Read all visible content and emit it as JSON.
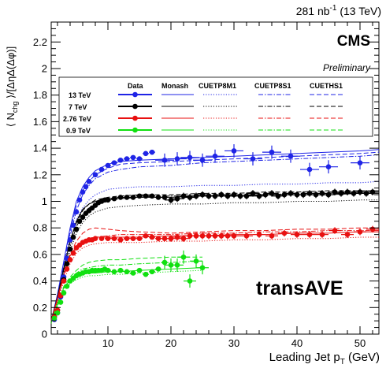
{
  "chart_data": {
    "type": "scatter",
    "header_right": "281 nb",
    "header_sup": "-1",
    "header_energy": " (13 TeV)",
    "experiment": "CMS",
    "status": "Preliminary",
    "region": "transAVE",
    "xlabel": "Leading Jet p",
    "xlabel_sub": "T",
    "xlabel_unit": " (GeV)",
    "ylabel": "⟨ N_chg ⟩/[ΔηΔ(Δφ)]",
    "xlim": [
      1,
      53
    ],
    "ylim": [
      0,
      2.35
    ],
    "x_ticks": [
      10,
      20,
      30,
      40,
      50
    ],
    "y_ticks": [
      0,
      0.2,
      0.4,
      0.6,
      0.8,
      1,
      1.2,
      1.4,
      1.6,
      1.8,
      2,
      2.2
    ],
    "legend": {
      "headers": [
        "Data",
        "Monash",
        "CUETP8M1",
        "CUETP8S1",
        "CUETHS1"
      ],
      "rows": [
        "13 TeV",
        "7 TeV",
        "2.76 TeV",
        "0.9 TeV"
      ]
    },
    "colors": {
      "13 TeV": "#1f24e6",
      "7 TeV": "#000000",
      "2.76 TeV": "#e81010",
      "0.9 TeV": "#10e010"
    },
    "data_series": [
      {
        "name": "13 TeV",
        "x": [
          1.5,
          2.0,
          2.5,
          3.0,
          3.5,
          4.0,
          4.5,
          5.0,
          5.5,
          6.0,
          6.5,
          7.0,
          8.0,
          9.0,
          10.0,
          11.0,
          12.0,
          13.0,
          14.0,
          15.0,
          16.0,
          17.0,
          19.0,
          21.0,
          23.0,
          25.0,
          27.0,
          30.0,
          33.0,
          36.0,
          39.0,
          42.0,
          45.0,
          50.0
        ],
        "y": [
          0.11,
          0.16,
          0.28,
          0.43,
          0.57,
          0.71,
          0.82,
          0.92,
          1.01,
          1.07,
          1.11,
          1.15,
          1.2,
          1.24,
          1.27,
          1.29,
          1.31,
          1.32,
          1.33,
          1.32,
          1.36,
          1.37,
          1.31,
          1.32,
          1.33,
          1.31,
          1.34,
          1.38,
          1.32,
          1.37,
          1.34,
          1.24,
          1.26,
          1.29
        ]
      },
      {
        "name": "7 TeV",
        "x": [
          1.5,
          2.0,
          2.5,
          3.0,
          3.5,
          4.0,
          4.5,
          5.0,
          5.5,
          6.0,
          6.5,
          7.0,
          7.5,
          8.0,
          8.5,
          9.0,
          9.5,
          10.0,
          11.0,
          12.0,
          13.0,
          14.0,
          15.0,
          16.0,
          17.0,
          18.0,
          19.0,
          20.0,
          21.0,
          22.0,
          23.0,
          24.0,
          25.0,
          26.0,
          27.0,
          28.0,
          29.0,
          30.0,
          31.0,
          32.0,
          33.0,
          34.0,
          35.0,
          36.0,
          37.0,
          38.0,
          39.0,
          40.0,
          41.0,
          42.0,
          43.0,
          44.0,
          45.0,
          46.0,
          47.0,
          48.0,
          49.0,
          50.0,
          51.0,
          52.0
        ],
        "y": [
          0.13,
          0.18,
          0.29,
          0.41,
          0.53,
          0.64,
          0.73,
          0.79,
          0.85,
          0.88,
          0.91,
          0.93,
          0.95,
          0.97,
          0.99,
          1.0,
          1.01,
          1.01,
          1.02,
          1.03,
          1.03,
          1.03,
          1.04,
          1.04,
          1.04,
          1.03,
          1.03,
          1.01,
          1.02,
          1.04,
          1.03,
          1.04,
          1.05,
          1.04,
          1.04,
          1.05,
          1.04,
          1.05,
          1.04,
          1.04,
          1.06,
          1.04,
          1.05,
          1.06,
          1.04,
          1.05,
          1.06,
          1.05,
          1.05,
          1.06,
          1.05,
          1.06,
          1.05,
          1.07,
          1.06,
          1.07,
          1.06,
          1.07,
          1.06,
          1.07
        ]
      },
      {
        "name": "2.76 TeV",
        "x": [
          1.5,
          2.0,
          2.5,
          3.0,
          3.5,
          4.0,
          4.5,
          5.0,
          5.5,
          6.0,
          6.5,
          7.0,
          7.5,
          8.0,
          9.0,
          10.0,
          11.0,
          12.0,
          13.0,
          14.0,
          15.0,
          16.0,
          17.0,
          18.0,
          19.0,
          20.0,
          21.0,
          22.0,
          23.0,
          24.0,
          25.0,
          26.0,
          27.0,
          28.0,
          29.0,
          30.0,
          32.0,
          34.0,
          36.0,
          38.0,
          40.0,
          42.0,
          44.0,
          46.0,
          48.0,
          50.0,
          52.0
        ],
        "y": [
          0.13,
          0.18,
          0.29,
          0.4,
          0.49,
          0.56,
          0.61,
          0.65,
          0.67,
          0.69,
          0.7,
          0.71,
          0.71,
          0.72,
          0.72,
          0.72,
          0.72,
          0.71,
          0.72,
          0.72,
          0.72,
          0.74,
          0.73,
          0.72,
          0.72,
          0.72,
          0.73,
          0.72,
          0.74,
          0.74,
          0.74,
          0.74,
          0.74,
          0.74,
          0.74,
          0.74,
          0.74,
          0.75,
          0.74,
          0.76,
          0.75,
          0.75,
          0.75,
          0.78,
          0.75,
          0.77,
          0.79
        ]
      },
      {
        "name": "0.9 TeV",
        "x": [
          1.5,
          2.0,
          2.5,
          3.0,
          3.5,
          4.0,
          4.5,
          5.0,
          5.5,
          6.0,
          6.5,
          7.0,
          7.5,
          8.0,
          8.5,
          9.0,
          9.5,
          10.0,
          11.0,
          12.0,
          13.0,
          14.0,
          15.0,
          16.0,
          17.0,
          18.0,
          19.0,
          20.0,
          21.0,
          22.0,
          23.0,
          24.0,
          25.0
        ],
        "y": [
          0.12,
          0.16,
          0.24,
          0.31,
          0.36,
          0.4,
          0.42,
          0.44,
          0.45,
          0.46,
          0.47,
          0.47,
          0.48,
          0.48,
          0.48,
          0.48,
          0.49,
          0.48,
          0.47,
          0.48,
          0.47,
          0.46,
          0.48,
          0.45,
          0.47,
          0.49,
          0.54,
          0.52,
          0.52,
          0.58,
          0.4,
          0.55,
          0.5
        ]
      }
    ],
    "model_curves": {
      "x": [
        1,
        2,
        3,
        4,
        5,
        6,
        7,
        8,
        10,
        12,
        15,
        20,
        25,
        30,
        35,
        40,
        45,
        50,
        53
      ],
      "13 TeV": {
        "Monash": [
          0.1,
          0.3,
          0.55,
          0.8,
          1.0,
          1.11,
          1.18,
          1.23,
          1.28,
          1.3,
          1.31,
          1.32,
          1.33,
          1.34,
          1.35,
          1.36,
          1.37,
          1.38,
          1.39
        ],
        "CUETP8M1": [
          0.09,
          0.26,
          0.48,
          0.7,
          0.86,
          0.95,
          1.01,
          1.05,
          1.09,
          1.1,
          1.11,
          1.11,
          1.12,
          1.12,
          1.13,
          1.13,
          1.14,
          1.14,
          1.15
        ],
        "CUETP8S1": [
          0.09,
          0.28,
          0.5,
          0.74,
          0.93,
          1.05,
          1.12,
          1.17,
          1.22,
          1.24,
          1.26,
          1.27,
          1.29,
          1.3,
          1.31,
          1.32,
          1.33,
          1.34,
          1.35
        ],
        "CUETHS1": [
          0.1,
          0.29,
          0.53,
          0.77,
          0.97,
          1.08,
          1.15,
          1.2,
          1.25,
          1.28,
          1.29,
          1.3,
          1.31,
          1.32,
          1.33,
          1.34,
          1.35,
          1.36,
          1.37
        ]
      },
      "7 TeV": {
        "Monash": [
          0.1,
          0.28,
          0.5,
          0.7,
          0.85,
          0.94,
          0.98,
          1.0,
          1.02,
          1.03,
          1.03,
          1.03,
          1.04,
          1.04,
          1.05,
          1.05,
          1.05,
          1.06,
          1.06
        ],
        "CUETP8M1": [
          0.09,
          0.25,
          0.45,
          0.63,
          0.76,
          0.84,
          0.89,
          0.92,
          0.95,
          0.96,
          0.97,
          0.98,
          0.98,
          0.99,
          0.99,
          1.0,
          1.0,
          1.01,
          1.01
        ],
        "CUETP8S1": [
          0.09,
          0.27,
          0.47,
          0.66,
          0.81,
          0.9,
          0.95,
          0.98,
          1.01,
          1.02,
          1.03,
          1.04,
          1.04,
          1.05,
          1.05,
          1.06,
          1.06,
          1.07,
          1.07
        ],
        "CUETHS1": [
          0.1,
          0.28,
          0.49,
          0.69,
          0.84,
          0.93,
          0.98,
          1.01,
          1.03,
          1.04,
          1.05,
          1.05,
          1.06,
          1.06,
          1.07,
          1.07,
          1.08,
          1.08,
          1.08
        ]
      },
      "2.76 TeV": {
        "Monash": [
          0.1,
          0.27,
          0.45,
          0.59,
          0.66,
          0.7,
          0.72,
          0.73,
          0.73,
          0.73,
          0.73,
          0.74,
          0.74,
          0.75,
          0.75,
          0.76,
          0.76,
          0.77,
          0.77
        ],
        "CUETP8M1": [
          0.09,
          0.24,
          0.4,
          0.53,
          0.61,
          0.65,
          0.67,
          0.68,
          0.69,
          0.69,
          0.69,
          0.7,
          0.7,
          0.71,
          0.71,
          0.72,
          0.72,
          0.73,
          0.73
        ],
        "CUETP8S1": [
          0.09,
          0.26,
          0.43,
          0.57,
          0.65,
          0.7,
          0.72,
          0.73,
          0.74,
          0.75,
          0.75,
          0.75,
          0.76,
          0.76,
          0.77,
          0.77,
          0.78,
          0.78,
          0.78
        ],
        "CUETHS1": [
          0.1,
          0.27,
          0.45,
          0.6,
          0.7,
          0.76,
          0.79,
          0.8,
          0.79,
          0.78,
          0.77,
          0.76,
          0.77,
          0.78,
          0.78,
          0.79,
          0.79,
          0.8,
          0.8
        ]
      },
      "0.9 TeV": {
        "Monash": [
          0.09,
          0.23,
          0.35,
          0.41,
          0.44,
          0.45,
          0.46,
          0.46,
          0.47,
          0.47,
          0.48,
          0.49,
          0.5
        ],
        "CUETP8M1": [
          0.08,
          0.21,
          0.32,
          0.38,
          0.41,
          0.43,
          0.44,
          0.44,
          0.45,
          0.45,
          0.46,
          0.47,
          0.48
        ],
        "CUETP8S1": [
          0.09,
          0.22,
          0.34,
          0.41,
          0.46,
          0.49,
          0.5,
          0.51,
          0.52,
          0.52,
          0.53,
          0.54,
          0.55
        ],
        "CUETHS1": [
          0.09,
          0.23,
          0.36,
          0.43,
          0.48,
          0.52,
          0.54,
          0.55,
          0.56,
          0.56,
          0.57,
          0.58,
          0.58
        ]
      }
    },
    "line_styles": {
      "Monash": "solid",
      "CUETP8M1": "dotted",
      "CUETP8S1": "dash-dot",
      "CUETHS1": "dashed"
    }
  }
}
